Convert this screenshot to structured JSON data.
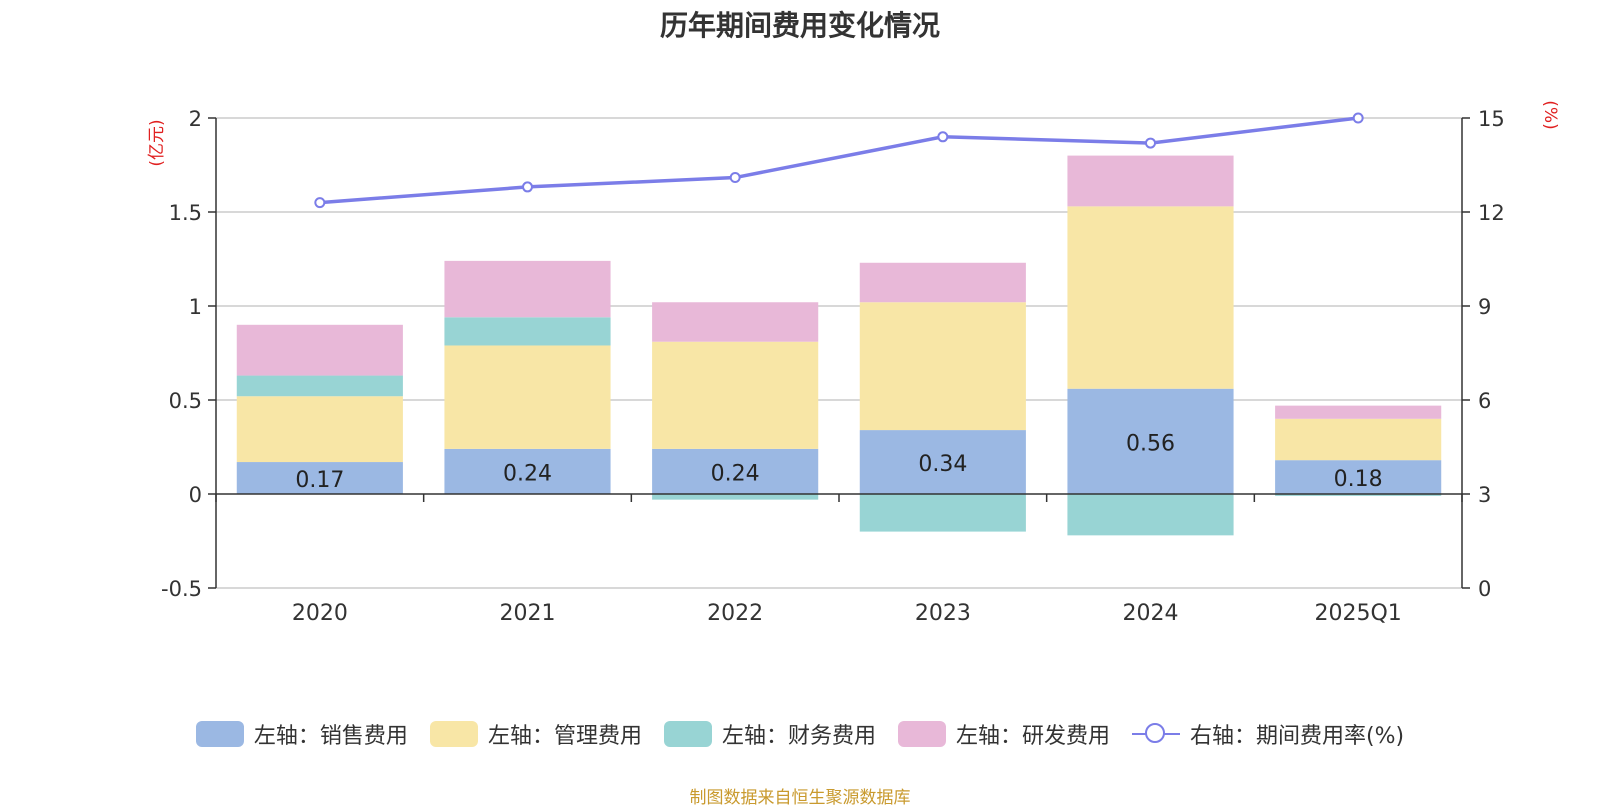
{
  "chart_data": {
    "type": "bar",
    "title": "历年期间费用变化情况",
    "y_left_unit": "(亿元)",
    "y_right_unit": "(%)",
    "categories": [
      "2020",
      "2021",
      "2022",
      "2023",
      "2024",
      "2025Q1"
    ],
    "ylim_left": [
      -0.5,
      2
    ],
    "yticks_left": [
      "-0.5",
      "0",
      "0.5",
      "1",
      "1.5",
      "2"
    ],
    "ylim_right": [
      0,
      15
    ],
    "yticks_right": [
      "0",
      "3",
      "6",
      "9",
      "12",
      "15"
    ],
    "stacked": true,
    "grid": true,
    "legend_position": "bottom",
    "series": [
      {
        "name": "左轴：销售费用",
        "type": "bar",
        "color": "#9bb8e3",
        "values": [
          0.17,
          0.24,
          0.24,
          0.34,
          0.56,
          0.18
        ],
        "labels": [
          "0.17",
          "0.24",
          "0.24",
          "0.34",
          "0.56",
          "0.18"
        ]
      },
      {
        "name": "左轴：管理费用",
        "type": "bar",
        "color": "#f8e6a6",
        "values": [
          0.35,
          0.55,
          0.57,
          0.68,
          0.97,
          0.22
        ]
      },
      {
        "name": "左轴：财务费用",
        "type": "bar",
        "color": "#98d4d4",
        "values": [
          0.11,
          0.15,
          -0.03,
          -0.2,
          -0.22,
          -0.01
        ]
      },
      {
        "name": "左轴：研发费用",
        "type": "bar",
        "color": "#e8b8d8",
        "values": [
          0.27,
          0.3,
          0.21,
          0.21,
          0.27,
          0.07
        ]
      },
      {
        "name": "右轴：期间费用率(%)",
        "type": "line",
        "axis": "right",
        "color": "#7b7de8",
        "values": [
          12.3,
          12.8,
          13.1,
          14.4,
          14.2,
          15.0
        ]
      }
    ]
  },
  "source_note": "制图数据来自恒生聚源数据库"
}
